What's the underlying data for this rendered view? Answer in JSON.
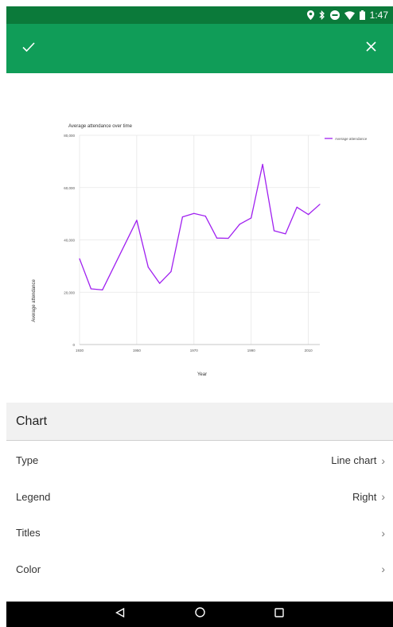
{
  "status_bar": {
    "time": "1:47"
  },
  "app_bar": {
    "confirm_icon": "check-icon",
    "close_icon": "close-icon",
    "color": "#109d58"
  },
  "chart_data": {
    "type": "line",
    "title": "Average attendance over time",
    "xlabel": "Year",
    "ylabel": "Average attendance",
    "x": [
      1930,
      1934,
      1938,
      1950,
      1954,
      1958,
      1962,
      1966,
      1970,
      1974,
      1978,
      1982,
      1986,
      1990,
      1994,
      1998,
      2002,
      2006,
      2010,
      2014
    ],
    "series": [
      {
        "name": "Average attendance",
        "color": "#a020f0",
        "values": [
          32800,
          21300,
          20900,
          47500,
          29600,
          23400,
          27900,
          48800,
          50100,
          49100,
          40700,
          40600,
          46000,
          48400,
          68900,
          43500,
          42300,
          52500,
          49700,
          53600
        ]
      }
    ],
    "xlim": [
      1930,
      2014
    ],
    "ylim": [
      0,
      80000
    ],
    "yticks": [
      0,
      20000,
      40000,
      60000,
      80000
    ],
    "ytick_labels": [
      "0",
      "20,000",
      "40,000",
      "60,000",
      "80,000"
    ],
    "xticks": [
      1930,
      1950,
      1970,
      1990,
      2010
    ],
    "xtick_labels": [
      "1930",
      "1950",
      "1970",
      "1990",
      "2010"
    ],
    "grid": true,
    "legend_position": "right"
  },
  "section": {
    "title": "Chart"
  },
  "settings": [
    {
      "label": "Type",
      "value": "Line chart"
    },
    {
      "label": "Legend",
      "value": "Right"
    },
    {
      "label": "Titles",
      "value": ""
    },
    {
      "label": "Color",
      "value": ""
    }
  ],
  "nav": {
    "back_icon": "back-icon",
    "home_icon": "home-icon",
    "recents_icon": "recents-icon"
  }
}
